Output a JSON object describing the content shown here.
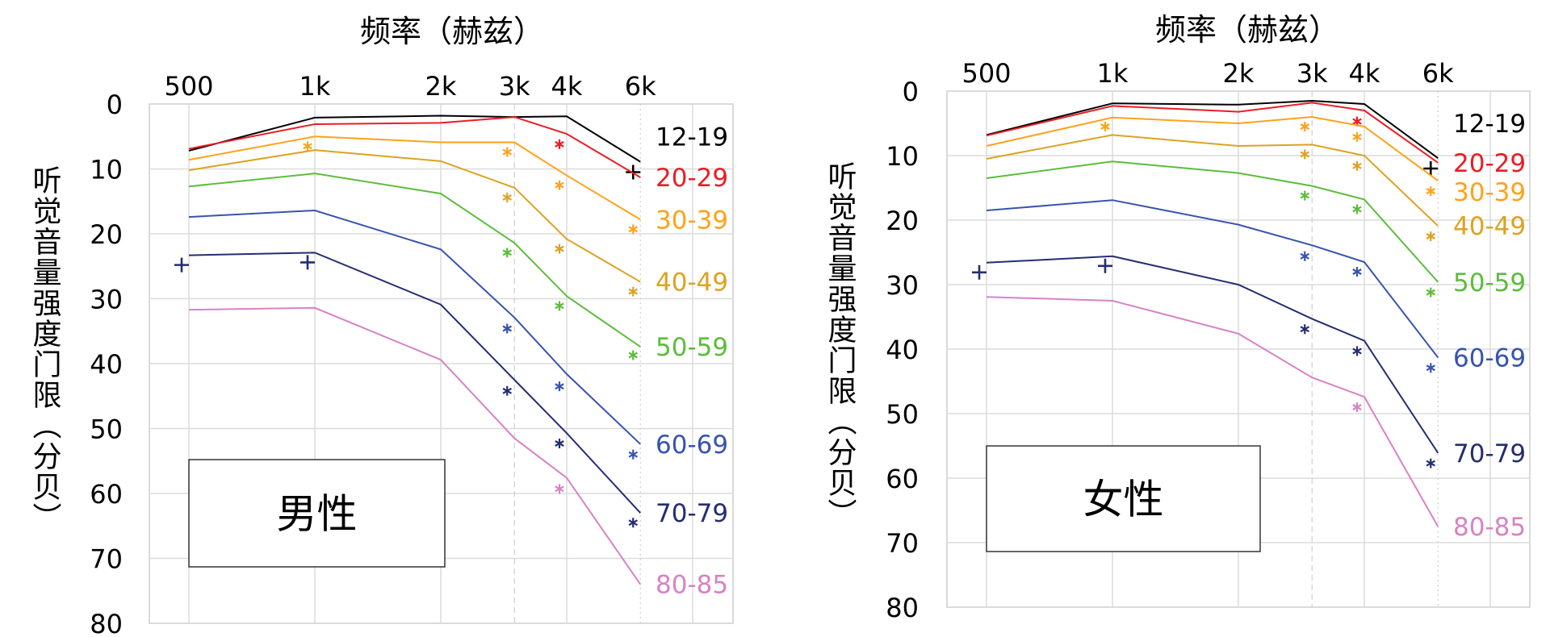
{
  "chart_data": [
    {
      "type": "line",
      "title": "",
      "xlabel": "频率（赫兹）",
      "ylabel": "听觉音量强度门限（分贝）",
      "box_label": "男性",
      "x_scale": "log",
      "x": [
        500,
        1000,
        2000,
        3000,
        4000,
        6000
      ],
      "x_tick_labels": [
        "500",
        "1k",
        "2k",
        "3k",
        "4k",
        "6k"
      ],
      "y_ticks": [
        0,
        10,
        20,
        30,
        40,
        50,
        60,
        70,
        80
      ],
      "ylim": [
        0,
        80
      ],
      "y_reversed": true,
      "grid": true,
      "series": [
        {
          "name": "12-19",
          "color": "#000000",
          "values": [
            7.2,
            2.1,
            1.8,
            2.0,
            1.9,
            8.9
          ],
          "markers": [
            {
              "x": 6000,
              "y": 10.0,
              "symbol": "+"
            }
          ]
        },
        {
          "name": "20-29",
          "color": "#ec1c24",
          "values": [
            6.9,
            3.1,
            2.9,
            2.0,
            4.6,
            11.3
          ],
          "markers": [
            {
              "x": 4000,
              "y": 5.7,
              "symbol": "*"
            }
          ]
        },
        {
          "name": "30-39",
          "color": "#ffa21a",
          "values": [
            8.6,
            5.0,
            5.9,
            5.9,
            11.0,
            17.8
          ],
          "markers": [
            {
              "x": 1000,
              "y": 6.0,
              "symbol": "*"
            },
            {
              "x": 3000,
              "y": 6.9,
              "symbol": "*"
            },
            {
              "x": 4000,
              "y": 12.0,
              "symbol": "*"
            },
            {
              "x": 6000,
              "y": 18.8,
              "symbol": "*"
            }
          ]
        },
        {
          "name": "40-49",
          "color": "#dca322",
          "values": [
            10.2,
            7.1,
            8.8,
            12.9,
            20.8,
            27.4
          ],
          "markers": [
            {
              "x": 3000,
              "y": 13.9,
              "symbol": "*"
            },
            {
              "x": 4000,
              "y": 21.8,
              "symbol": "*"
            },
            {
              "x": 6000,
              "y": 28.4,
              "symbol": "*"
            }
          ]
        },
        {
          "name": "50-59",
          "color": "#5cbd3b",
          "values": [
            12.7,
            10.7,
            13.8,
            21.4,
            29.6,
            37.4
          ],
          "markers": [
            {
              "x": 3000,
              "y": 22.4,
              "symbol": "*"
            },
            {
              "x": 4000,
              "y": 30.6,
              "symbol": "*"
            },
            {
              "x": 6000,
              "y": 38.2,
              "symbol": "*"
            }
          ]
        },
        {
          "name": "60-69",
          "color": "#3754ae",
          "values": [
            17.4,
            16.4,
            22.4,
            32.9,
            41.6,
            52.4
          ],
          "markers": [
            {
              "x": 3000,
              "y": 34.1,
              "symbol": "*"
            },
            {
              "x": 4000,
              "y": 43.0,
              "symbol": "*"
            },
            {
              "x": 6000,
              "y": 53.5,
              "symbol": "*"
            }
          ]
        },
        {
          "name": "70-79",
          "color": "#252d72",
          "values": [
            23.3,
            22.9,
            30.9,
            42.5,
            50.7,
            63.0
          ],
          "markers": [
            {
              "x": 500,
              "y": 24.3,
              "symbol": "+"
            },
            {
              "x": 1000,
              "y": 23.9,
              "symbol": "+"
            },
            {
              "x": 3000,
              "y": 43.7,
              "symbol": "*"
            },
            {
              "x": 4000,
              "y": 51.8,
              "symbol": "*"
            },
            {
              "x": 6000,
              "y": 64.0,
              "symbol": "*"
            }
          ]
        },
        {
          "name": "80-85",
          "color": "#d783c4",
          "values": [
            31.7,
            31.4,
            39.4,
            51.5,
            57.6,
            74.0
          ],
          "markers": [
            {
              "x": 4000,
              "y": 58.8,
              "symbol": "*"
            }
          ]
        }
      ]
    },
    {
      "type": "line",
      "title": "",
      "xlabel": "频率（赫兹）",
      "ylabel": "听觉音量强度门限（分贝）",
      "box_label": "女性",
      "x_scale": "log",
      "x": [
        500,
        1000,
        2000,
        3000,
        4000,
        6000
      ],
      "x_tick_labels": [
        "500",
        "1k",
        "2k",
        "3k",
        "4k",
        "6k"
      ],
      "y_ticks": [
        0,
        10,
        20,
        30,
        40,
        50,
        60,
        70,
        80
      ],
      "ylim": [
        0,
        80
      ],
      "y_reversed": true,
      "grid": true,
      "series": [
        {
          "name": "12-19",
          "color": "#000000",
          "values": [
            6.8,
            1.9,
            2.1,
            1.5,
            2.0,
            10.4
          ],
          "markers": [
            {
              "x": 6000,
              "y": 11.5,
              "symbol": "+"
            }
          ]
        },
        {
          "name": "20-29",
          "color": "#ec1c24",
          "values": [
            6.9,
            2.3,
            3.2,
            1.8,
            3.0,
            11.1
          ],
          "markers": [
            {
              "x": 4000,
              "y": 4.2,
              "symbol": "*"
            }
          ]
        },
        {
          "name": "30-39",
          "color": "#ffa21a",
          "values": [
            8.5,
            4.1,
            5.0,
            4.0,
            5.5,
            13.9
          ],
          "markers": [
            {
              "x": 1000,
              "y": 5.0,
              "symbol": "*"
            },
            {
              "x": 3000,
              "y": 5.0,
              "symbol": "*"
            },
            {
              "x": 4000,
              "y": 6.6,
              "symbol": "*"
            },
            {
              "x": 6000,
              "y": 15.0,
              "symbol": "*"
            }
          ]
        },
        {
          "name": "40-49",
          "color": "#dca322",
          "values": [
            10.5,
            6.8,
            8.5,
            8.3,
            10.0,
            20.9
          ],
          "markers": [
            {
              "x": 3000,
              "y": 9.3,
              "symbol": "*"
            },
            {
              "x": 4000,
              "y": 11.1,
              "symbol": "*"
            },
            {
              "x": 6000,
              "y": 22.0,
              "symbol": "*"
            }
          ]
        },
        {
          "name": "50-59",
          "color": "#5cbd3b",
          "values": [
            13.5,
            10.9,
            12.7,
            14.7,
            16.8,
            29.6
          ],
          "markers": [
            {
              "x": 3000,
              "y": 15.7,
              "symbol": "*"
            },
            {
              "x": 4000,
              "y": 17.8,
              "symbol": "*"
            },
            {
              "x": 6000,
              "y": 30.7,
              "symbol": "*"
            }
          ]
        },
        {
          "name": "60-69",
          "color": "#3754ae",
          "values": [
            18.5,
            16.9,
            20.7,
            23.9,
            26.5,
            41.3
          ],
          "markers": [
            {
              "x": 3000,
              "y": 25.1,
              "symbol": "*"
            },
            {
              "x": 4000,
              "y": 27.5,
              "symbol": "*"
            },
            {
              "x": 6000,
              "y": 42.4,
              "symbol": "*"
            }
          ]
        },
        {
          "name": "70-79",
          "color": "#252d72",
          "values": [
            26.6,
            25.6,
            30.0,
            35.3,
            38.7,
            56.1
          ],
          "markers": [
            {
              "x": 500,
              "y": 27.6,
              "symbol": "+"
            },
            {
              "x": 1000,
              "y": 26.6,
              "symbol": "+"
            },
            {
              "x": 3000,
              "y": 36.4,
              "symbol": "*"
            },
            {
              "x": 4000,
              "y": 39.8,
              "symbol": "*"
            },
            {
              "x": 6000,
              "y": 57.2,
              "symbol": "*"
            }
          ]
        },
        {
          "name": "80-85",
          "color": "#d783c4",
          "values": [
            31.9,
            32.5,
            37.6,
            44.4,
            47.4,
            67.5
          ],
          "markers": [
            {
              "x": 4000,
              "y": 48.5,
              "symbol": "*"
            }
          ]
        }
      ]
    }
  ]
}
